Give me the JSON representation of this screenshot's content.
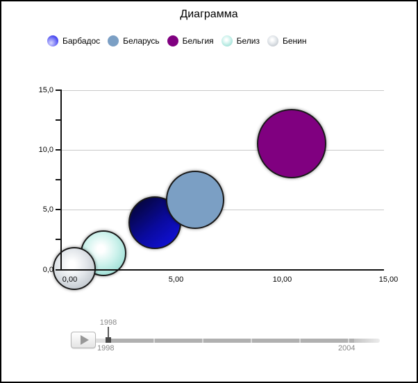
{
  "title": "Диаграмма",
  "legend": {
    "items": [
      {
        "label": "Барбадос",
        "swatch": {
          "type": "radial_bl",
          "highlight": "#d8d8ff",
          "edge": "#3b3bef"
        }
      },
      {
        "label": "Беларусь",
        "swatch": {
          "type": "flat",
          "fill": "#7b9fc4"
        }
      },
      {
        "label": "Бельгия",
        "swatch": {
          "type": "flat",
          "fill": "#800080"
        }
      },
      {
        "label": "Белиз",
        "swatch": {
          "type": "radial",
          "highlight": "#ffffff",
          "mid": "#cdf2ec",
          "edge": "#7fd2c6"
        }
      },
      {
        "label": "Бенин",
        "swatch": {
          "type": "radial",
          "highlight": "#ffffff",
          "mid": "#e2e6ea",
          "edge": "#aeb5bd"
        }
      }
    ]
  },
  "chart_data": {
    "type": "bubble",
    "title": "Диаграмма",
    "x_axis": {
      "range": [
        0,
        15
      ],
      "tick_values": [
        0,
        5,
        10,
        15
      ],
      "tick_labels": [
        "0,00",
        "5,00",
        "10,00",
        "15,00"
      ],
      "minor_tick_step": 2.5
    },
    "y_axis": {
      "range": [
        0,
        15
      ],
      "tick_values": [
        15,
        10,
        5,
        0
      ],
      "tick_labels": [
        "15,0",
        "10,0",
        "5,0",
        "0,0"
      ],
      "minor_tick_step": 2.5,
      "grid_values": [
        5,
        10,
        15
      ]
    },
    "gridlines": "horizontal-only",
    "legend_position": "top",
    "series": [
      {
        "name": "Барбадос",
        "x": 4.0,
        "y": 3.9,
        "radius_px": 38,
        "z": 3,
        "fill": {
          "type": "linear",
          "from": "#04042e",
          "mid": "#0a0a9e",
          "to": "#1212e6",
          "angle": 140
        }
      },
      {
        "name": "Беларусь",
        "x": 5.9,
        "y": 5.85,
        "radius_px": 42,
        "z": 4,
        "fill": {
          "type": "flat",
          "fill": "#7b9fc4"
        }
      },
      {
        "name": "Бельгия",
        "x": 10.45,
        "y": 10.55,
        "radius_px": 50,
        "z": 5,
        "fill": {
          "type": "flat",
          "fill": "#800080"
        }
      },
      {
        "name": "Белиз",
        "x": 1.6,
        "y": 1.35,
        "radius_px": 33,
        "z": 1,
        "fill": {
          "type": "radial",
          "highlight": "#ffffff",
          "mid": "#cdf2ec",
          "edge": "#7fd2c6"
        }
      },
      {
        "name": "Бенин",
        "x": 0.2,
        "y": 0.1,
        "radius_px": 31,
        "z": 2,
        "fill": {
          "type": "radial",
          "highlight": "#ffffff",
          "mid": "#e2e6ea",
          "edge": "#aeb5bd"
        }
      }
    ]
  },
  "timeline": {
    "tooltip": "1998",
    "current_year": "1998",
    "start_label": "1998",
    "end_label": "2004",
    "play_icon": "triangle-right"
  },
  "colors": {
    "axis": "#111111",
    "gridline": "#c9c9c9",
    "timeline_text": "#858585",
    "track": "#b0b0b0"
  }
}
